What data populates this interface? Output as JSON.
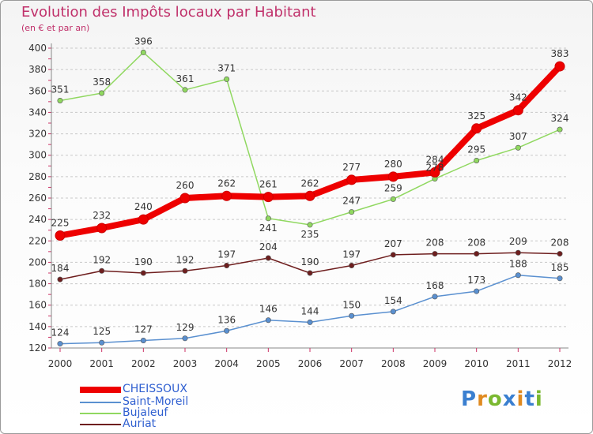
{
  "header": {
    "title": "Evolution des Impôts locaux par Habitant",
    "subtitle": "(en € et par an)"
  },
  "chart_data": {
    "type": "line",
    "title": "Evolution des Impôts locaux par Habitant",
    "subtitle": "(en € et par an)",
    "xlabel": "",
    "ylabel": "",
    "ylim": [
      120,
      400
    ],
    "yticks": [
      120,
      140,
      160,
      180,
      200,
      220,
      240,
      260,
      280,
      300,
      320,
      340,
      360,
      380,
      400
    ],
    "grid": "horizontal dashed",
    "legend_position": "bottom-left",
    "categories": [
      "2000",
      "2001",
      "2002",
      "2003",
      "2004",
      "2005",
      "2006",
      "2007",
      "2008",
      "2009",
      "2010",
      "2011",
      "2012"
    ],
    "series": [
      {
        "name": "CHEISSOUX",
        "color": "#ee0000",
        "emphasis": "thick",
        "values": [
          225,
          232,
          240,
          260,
          262,
          261,
          262,
          277,
          280,
          284,
          325,
          342,
          383
        ]
      },
      {
        "name": "Saint-Moreil",
        "color": "#5a90d0",
        "emphasis": "normal",
        "values": [
          124,
          125,
          127,
          129,
          136,
          146,
          144,
          150,
          154,
          168,
          173,
          188,
          185
        ]
      },
      {
        "name": "Bujaleuf",
        "color": "#90d860",
        "emphasis": "normal",
        "values": [
          351,
          358,
          396,
          361,
          371,
          241,
          235,
          247,
          259,
          278,
          295,
          307,
          324
        ]
      },
      {
        "name": "Auriat",
        "color": "#6e1e1e",
        "emphasis": "normal",
        "values": [
          184,
          192,
          190,
          192,
          197,
          204,
          190,
          197,
          207,
          208,
          208,
          209,
          208
        ]
      }
    ],
    "data_labels": {
      "CHEISSOUX": [
        "225",
        "232",
        "240",
        "260",
        "262",
        "261",
        "262",
        "277",
        "280",
        "284",
        "325",
        "342",
        "383"
      ],
      "Saint-Moreil": [
        "124",
        "125",
        "127",
        "129",
        "136",
        "146",
        "144",
        "150",
        "154",
        "168",
        "173",
        "188",
        "185"
      ],
      "Bujaleuf": [
        "351",
        "358",
        "396",
        "361",
        "371",
        "241",
        "235",
        "247",
        "259",
        "278",
        "295",
        "307",
        "324"
      ],
      "Auriat": [
        "184",
        "192",
        "190",
        "192",
        "197",
        "204",
        "190",
        "197",
        "207",
        "208",
        "208",
        "209",
        "208"
      ]
    }
  },
  "legend": {
    "items": [
      {
        "label": "CHEISSOUX",
        "color": "#ee0000"
      },
      {
        "label": "Saint-Moreil",
        "color": "#5a90d0"
      },
      {
        "label": "Bujaleuf",
        "color": "#90d860"
      },
      {
        "label": "Auriat",
        "color": "#6e1e1e"
      }
    ]
  },
  "logo": {
    "letters": [
      "P",
      "r",
      "o",
      "x",
      "i",
      "t",
      "i"
    ],
    "colors": [
      "#3a7fd0",
      "#e08a20",
      "#7ab830",
      "#3a7fd0",
      "#e08a20",
      "#3a7fd0",
      "#7ab830"
    ]
  }
}
